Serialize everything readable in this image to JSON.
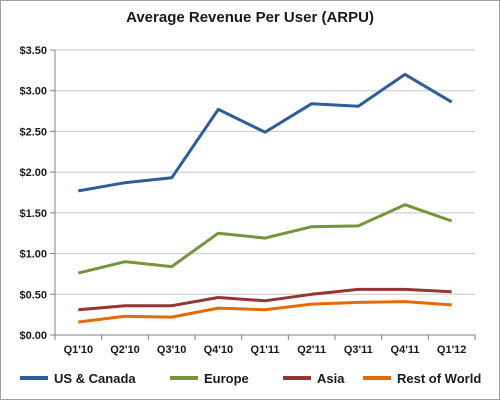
{
  "chart_data": {
    "type": "line",
    "title": "Average Revenue Per User (ARPU)",
    "xlabel": "",
    "ylabel": "",
    "categories": [
      "Q1'10",
      "Q2'10",
      "Q3'10",
      "Q4'10",
      "Q1'11",
      "Q2'11",
      "Q3'11",
      "Q4'11",
      "Q1'12"
    ],
    "y_ticks": [
      "$0.00",
      "$0.50",
      "$1.00",
      "$1.50",
      "$2.00",
      "$2.50",
      "$3.00",
      "$3.50"
    ],
    "ylim": [
      0,
      3.5
    ],
    "grid": true,
    "legend_position": "bottom",
    "series": [
      {
        "name": "US & Canada",
        "color": "#2f5d9a",
        "values": [
          1.77,
          1.87,
          1.93,
          2.77,
          2.49,
          2.84,
          2.81,
          3.2,
          2.86
        ]
      },
      {
        "name": "Europe",
        "color": "#77933c",
        "values": [
          0.76,
          0.9,
          0.84,
          1.25,
          1.19,
          1.33,
          1.34,
          1.6,
          1.4
        ]
      },
      {
        "name": "Asia",
        "color": "#943634",
        "values": [
          0.31,
          0.36,
          0.36,
          0.46,
          0.42,
          0.5,
          0.56,
          0.56,
          0.53
        ]
      },
      {
        "name": "Rest of World",
        "color": "#e36c0a",
        "values": [
          0.16,
          0.23,
          0.22,
          0.33,
          0.31,
          0.38,
          0.4,
          0.41,
          0.37
        ]
      }
    ]
  }
}
